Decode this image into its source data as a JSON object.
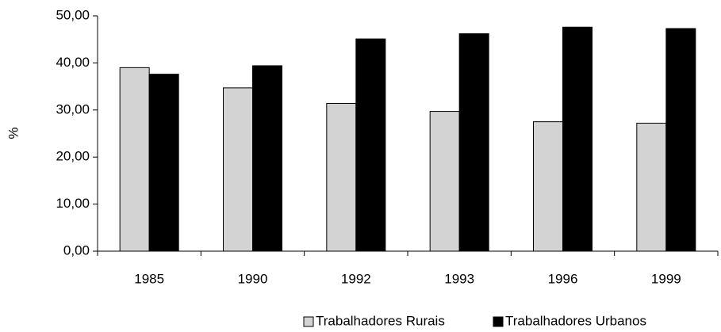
{
  "chart_data": {
    "type": "bar",
    "y_label": "%",
    "categories": [
      "1985",
      "1990",
      "1992",
      "1993",
      "1996",
      "1999"
    ],
    "series": [
      {
        "name": "Trabalhadores Rurais",
        "color": "#d3d3d3",
        "values": [
          39.0,
          34.7,
          31.4,
          29.7,
          27.5,
          27.2
        ]
      },
      {
        "name": "Trabalhadores Urbanos",
        "color": "#000000",
        "values": [
          37.6,
          39.4,
          45.1,
          46.2,
          47.6,
          47.3
        ]
      }
    ],
    "ylim": [
      0,
      50
    ],
    "yticks": [
      {
        "value": 0,
        "label": "0,00"
      },
      {
        "value": 10,
        "label": "10,00"
      },
      {
        "value": 20,
        "label": "20,00"
      },
      {
        "value": 30,
        "label": "30,00"
      },
      {
        "value": 40,
        "label": "40,00"
      },
      {
        "value": 50,
        "label": "50,00"
      }
    ],
    "legend": "bottom",
    "grid": false
  }
}
